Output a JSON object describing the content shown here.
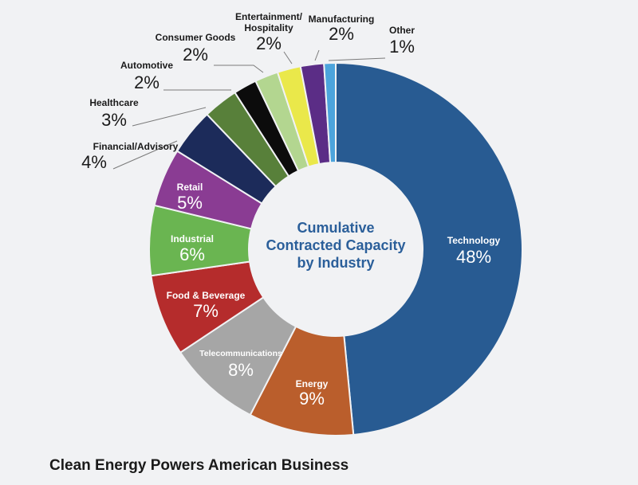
{
  "chart_data": {
    "type": "pie",
    "variant": "donut",
    "center_title_lines": [
      "Cumulative",
      "Contracted Capacity",
      "by Industry"
    ],
    "slices": [
      {
        "label": "Technology",
        "value": 48,
        "display": "48%",
        "color": "#285b92"
      },
      {
        "label": "Energy",
        "value": 9,
        "display": "9%",
        "color": "#ba5e2c"
      },
      {
        "label": "Telecommunications",
        "value": 8,
        "display": "8%",
        "color": "#a6a6a6"
      },
      {
        "label": "Food & Beverage",
        "value": 7,
        "display": "7%",
        "color": "#b52c2c"
      },
      {
        "label": "Industrial",
        "value": 6,
        "display": "6%",
        "color": "#6ab551"
      },
      {
        "label": "Retail",
        "value": 5,
        "display": "5%",
        "color": "#8a3c93"
      },
      {
        "label": "Financial/Advisory",
        "value": 4,
        "display": "4%",
        "color": "#1c2b5a"
      },
      {
        "label": "Healthcare",
        "value": 3,
        "display": "3%",
        "color": "#58803a"
      },
      {
        "label": "Automotive",
        "value": 2,
        "display": "2%",
        "color": "#0c0c0c"
      },
      {
        "label": "Consumer Goods",
        "value": 2,
        "display": "2%",
        "color": "#b3d690"
      },
      {
        "label": "Entertainment/ Hospitality",
        "value": 2,
        "display": "2%",
        "color": "#eae84a"
      },
      {
        "label": "Manufacturing",
        "value": 2,
        "display": "2%",
        "color": "#5b2d86"
      },
      {
        "label": "Other",
        "value": 1,
        "display": "1%",
        "color": "#4ca4dc"
      }
    ]
  },
  "footer": {
    "title": "Clean Energy Powers American Business"
  }
}
